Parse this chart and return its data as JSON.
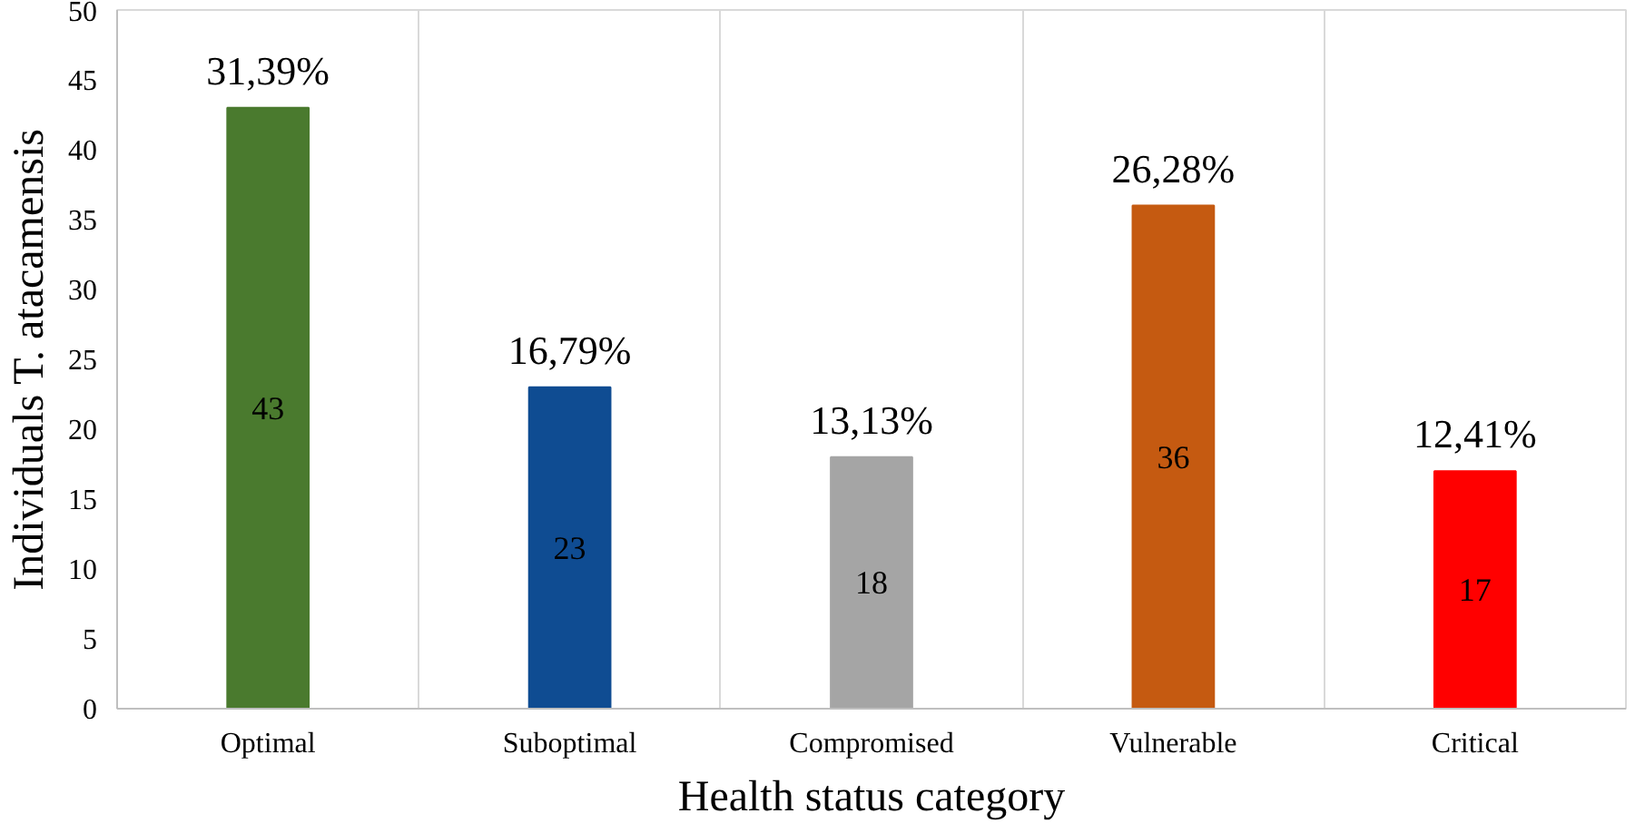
{
  "chart_data": {
    "type": "bar",
    "xlabel": "Health status category",
    "ylabel": "Individuals T. atacamensis",
    "categories": [
      "Optimal",
      "Suboptimal",
      "Compromised",
      "Vulnerable",
      "Critical"
    ],
    "values": [
      43,
      23,
      18,
      36,
      17
    ],
    "colors": [
      "#4a7a2e",
      "#0f4c92",
      "#a5a5a5",
      "#c55a11",
      "#ff0000"
    ],
    "ylim": [
      0,
      50
    ],
    "yticks": [
      0,
      5,
      10,
      15,
      20,
      25,
      30,
      35,
      40,
      45,
      50
    ],
    "grid": "x",
    "data_labels": true,
    "annotations": [
      {
        "text": "31,39%",
        "x": "Optimal",
        "y": 43
      },
      {
        "text": "16,79%",
        "x": "Suboptimal",
        "y": 23
      },
      {
        "text": "13,13%",
        "x": "Compromised",
        "y": 18
      },
      {
        "text": "26,28%",
        "x": "Vulnerable",
        "y": 36
      },
      {
        "text": "12,41%",
        "x": "Critical",
        "y": 17
      }
    ]
  }
}
